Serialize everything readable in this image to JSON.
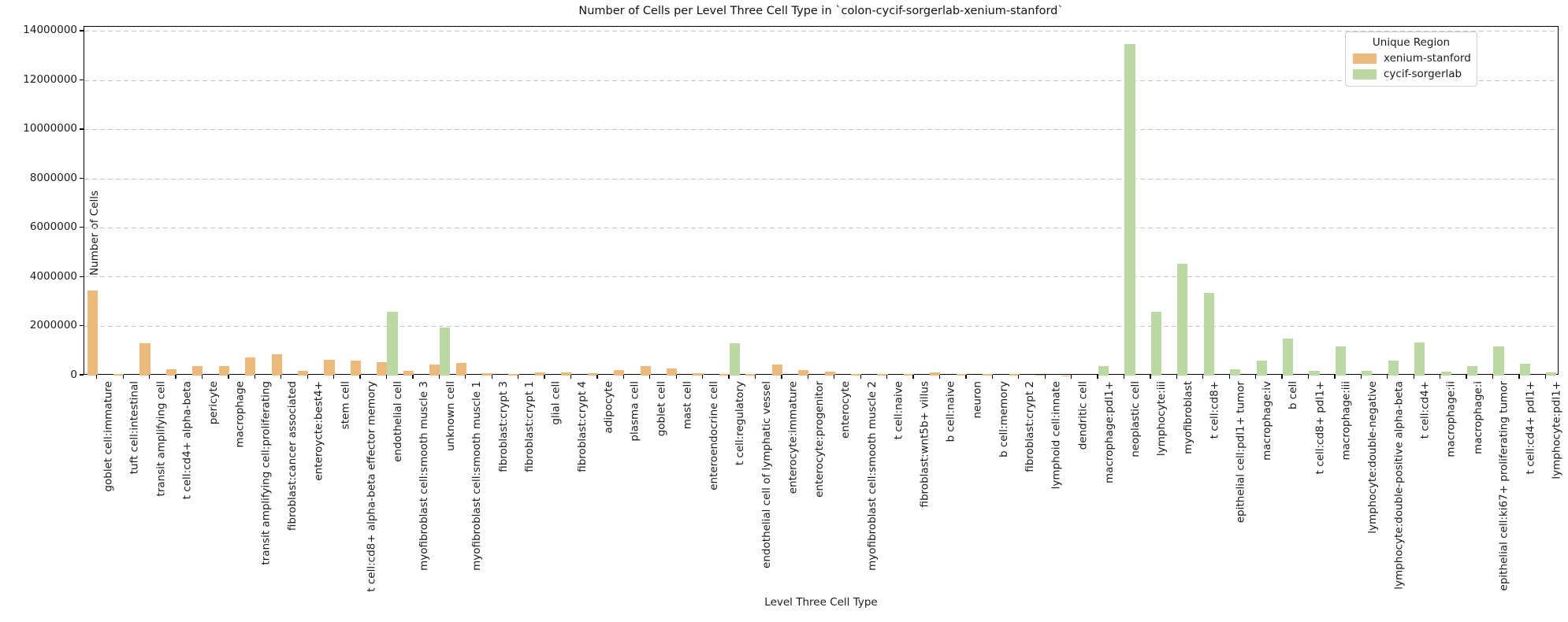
{
  "figure": {
    "title": "Number of Cells per Level Three Cell Type in `colon-cycif-sorgerlab-xenium-stanford`",
    "xlabel": "Level Three Cell Type",
    "ylabel": "Number of Cells",
    "legend": {
      "title": "Unique Region",
      "entries": [
        {
          "label": "xenium-stanford",
          "color": "#EDBA7D"
        },
        {
          "label": "cycif-sorgerlab",
          "color": "#BCD9A5"
        }
      ]
    }
  },
  "chart_data": {
    "type": "bar",
    "title": "Number of Cells per Level Three Cell Type in `colon-cycif-sorgerlab-xenium-stanford`",
    "xlabel": "Level Three Cell Type",
    "ylabel": "Number of Cells",
    "ylim": [
      0,
      14190000
    ],
    "yticks": [
      0,
      2000000,
      4000000,
      6000000,
      8000000,
      10000000,
      12000000,
      14000000
    ],
    "grid": "y-dashed",
    "legend_title": "Unique Region",
    "legend_position": "upper right",
    "categories": [
      "goblet cell:immature",
      "tuft cell:intestinal",
      "transit amplifying cell",
      "t cell:cd4+ alpha-beta",
      "pericyte",
      "macrophage",
      "transit amplifying cell:proliferating",
      "fibroblast:cancer associated",
      "enteroycte:best4+",
      "stem cell",
      "t cell:cd8+ alpha-beta effector memory",
      "endothelial cell",
      "myofibroblast cell:smooth muscle 3",
      "unknown cell",
      "myofibroblast cell:smooth muscle 1",
      "fibroblast:crypt 3",
      "fibroblast:crypt 1",
      "glial cell",
      "fibroblast:crypt 4",
      "adipocyte",
      "plasma cell",
      "goblet cell",
      "mast cell",
      "enteroendocrine cell",
      "t cell:regulatory",
      "endothelial cell of lymphatic vessel",
      "enterocyte:immature",
      "enterocyte:progenitor",
      "enterocyte",
      "myofibroblast cell:smooth muscle 2",
      "t cell:naive",
      "fibroblast:wnt5b+ villus",
      "b cell:naive",
      "neuron",
      "b cell:memory",
      "fibroblast:crypt 2",
      "lymphoid cell:innate",
      "dendritic cell",
      "macrophage:pdl1+",
      "neoplastic cell",
      "lymphocyte:iii",
      "myofibroblast",
      "t cell:cd8+",
      "epithelial cell:pdl1+ tumor",
      "macrophage:iv",
      "b cell",
      "t cell:cd8+ pdl1+",
      "macrophage:iii",
      "lymphocyte:double-negative",
      "lymphocyte:double-positive alpha-beta",
      "t cell:cd4+",
      "macrophage:ii",
      "macrophage:i",
      "epithelial cell:ki67+ proliferating tumor",
      "t cell:cd4+ pdl1+",
      "lymphocyte:pdl1+"
    ],
    "series": [
      {
        "name": "xenium-stanford",
        "color": "#EDBA7D",
        "values": [
          3450000,
          80000,
          1300000,
          250000,
          370000,
          370000,
          730000,
          860000,
          200000,
          650000,
          620000,
          550000,
          200000,
          450000,
          520000,
          110000,
          70000,
          140000,
          120000,
          90000,
          220000,
          400000,
          300000,
          90000,
          50000,
          50000,
          450000,
          220000,
          150000,
          70000,
          60000,
          70000,
          130000,
          60000,
          50000,
          50000,
          20000,
          15000,
          null,
          null,
          null,
          null,
          null,
          null,
          null,
          null,
          null,
          null,
          null,
          null,
          null,
          null,
          null,
          null,
          null,
          null
        ]
      },
      {
        "name": "cycif-sorgerlab",
        "color": "#BCD9A5",
        "values": [
          null,
          null,
          null,
          null,
          null,
          null,
          null,
          null,
          null,
          null,
          null,
          2600000,
          null,
          1950000,
          null,
          null,
          null,
          null,
          null,
          null,
          null,
          null,
          null,
          null,
          1300000,
          null,
          null,
          null,
          null,
          null,
          null,
          null,
          null,
          null,
          null,
          null,
          null,
          null,
          400000,
          13500000,
          2600000,
          4550000,
          3350000,
          270000,
          600000,
          1500000,
          200000,
          1200000,
          180000,
          600000,
          1350000,
          150000,
          380000,
          1200000,
          480000,
          120000
        ]
      }
    ]
  }
}
